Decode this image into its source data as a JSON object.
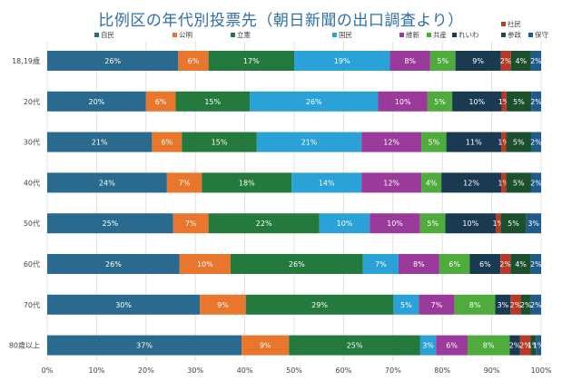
{
  "chart_data": {
    "type": "bar",
    "orientation": "horizontal",
    "stacked": "percent",
    "title": "比例区の年代別投票先（朝日新聞の出口調査より）",
    "xlabel": "",
    "ylabel": "",
    "xlim": [
      0,
      100
    ],
    "x_ticks": [
      "0%",
      "10%",
      "20%",
      "30%",
      "40%",
      "50%",
      "60%",
      "70%",
      "80%",
      "90%",
      "100%"
    ],
    "legend_position": "top",
    "categories": [
      "18,19歳",
      "20代",
      "30代",
      "40代",
      "50代",
      "60代",
      "70代",
      "80歳以上"
    ],
    "series": [
      {
        "name": "自民",
        "color": "#2a6a8f",
        "values": [
          26,
          20,
          21,
          24,
          25,
          26,
          30,
          37
        ]
      },
      {
        "name": "公明",
        "color": "#e8762d",
        "values": [
          6,
          6,
          6,
          7,
          7,
          10,
          9,
          9
        ]
      },
      {
        "name": "立憲",
        "color": "#237a3c",
        "values": [
          17,
          15,
          15,
          18,
          22,
          26,
          29,
          25
        ]
      },
      {
        "name": "国民",
        "color": "#2aa2d8",
        "values": [
          19,
          26,
          21,
          14,
          10,
          7,
          5,
          3
        ]
      },
      {
        "name": "維新",
        "color": "#9a3a9a",
        "values": [
          8,
          10,
          12,
          12,
          10,
          8,
          7,
          6
        ]
      },
      {
        "name": "共産",
        "color": "#4fab3c",
        "values": [
          5,
          5,
          5,
          4,
          5,
          6,
          8,
          8
        ]
      },
      {
        "name": "れいわ",
        "color": "#1a3a52",
        "values": [
          9,
          10,
          11,
          12,
          10,
          6,
          3,
          2
        ]
      },
      {
        "name": "社民",
        "color": "#b83a26",
        "values": [
          2,
          1,
          1,
          1,
          1,
          2,
          2,
          2
        ]
      },
      {
        "name": "参政",
        "color": "#1b4f2e",
        "values": [
          4,
          5,
          5,
          5,
          5,
          4,
          2,
          1
        ]
      },
      {
        "name": "保守",
        "color": "#1f5b8a",
        "values": [
          2,
          2,
          2,
          2,
          3,
          2,
          2,
          1
        ]
      }
    ]
  }
}
